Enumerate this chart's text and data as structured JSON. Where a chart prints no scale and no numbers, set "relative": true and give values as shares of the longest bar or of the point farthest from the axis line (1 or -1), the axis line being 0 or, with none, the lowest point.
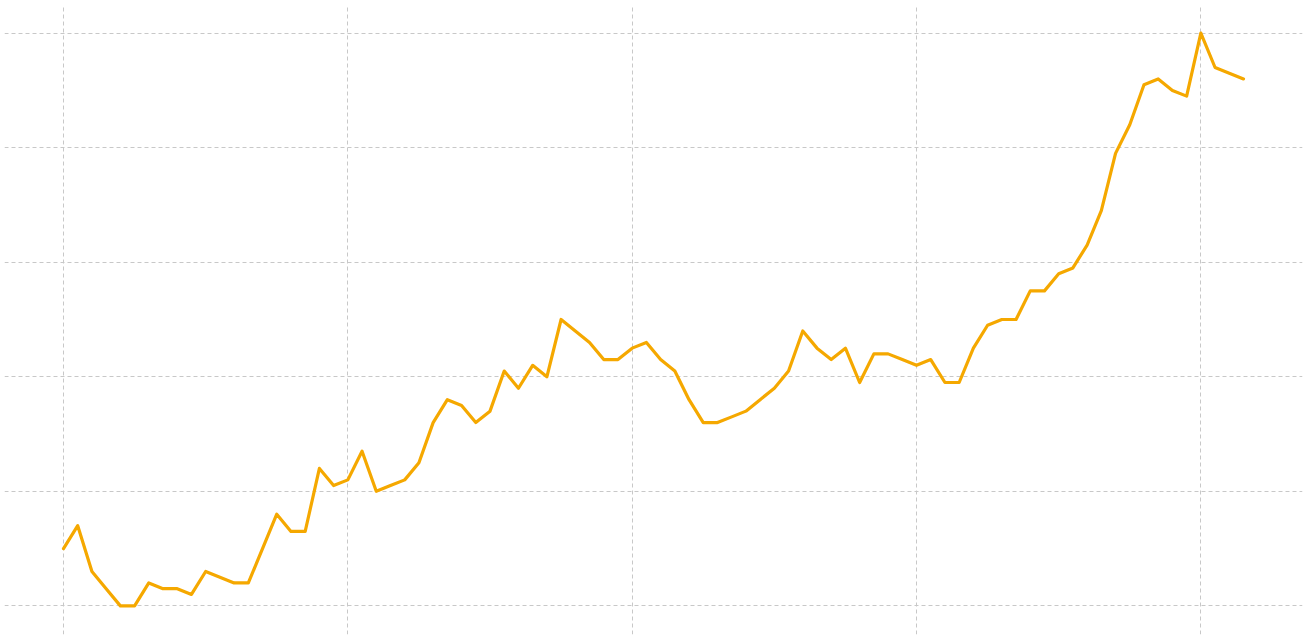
{
  "chart_data": {
    "type": "line",
    "relative": true,
    "grid": true,
    "line_style": "solid",
    "marker": "none",
    "categories": [
      null,
      null,
      null,
      null,
      null,
      null,
      null,
      null,
      null,
      null,
      null,
      null,
      null,
      null,
      null,
      null,
      null,
      null,
      null,
      null,
      null,
      null,
      null,
      null,
      null,
      null,
      null,
      null,
      null,
      null,
      null,
      null,
      null,
      null,
      null,
      null,
      null,
      null,
      null,
      null,
      null,
      null,
      null,
      null,
      null,
      null,
      null,
      null,
      null,
      null,
      null,
      null,
      null,
      null,
      null,
      null,
      null,
      null,
      null,
      null,
      null,
      null,
      null,
      null,
      null,
      null,
      null,
      null,
      null,
      null,
      null,
      null,
      null,
      null,
      null,
      null,
      null,
      null,
      null,
      null,
      null,
      null,
      null,
      null
    ],
    "series": [
      {
        "color": "#f5a800",
        "values": [
          0.1,
          0.14,
          0.06,
          0.03,
          0,
          0.0,
          0.04,
          0.03,
          0.03,
          0.02,
          0.06,
          0.05,
          0.04,
          0.04,
          0.1,
          0.16,
          0.13,
          0.13,
          0.24,
          0.21,
          0.22,
          0.27,
          0.2,
          0.21,
          0.22,
          0.25,
          0.32,
          0.36,
          0.35,
          0.32,
          0.34,
          0.41,
          0.38,
          0.42,
          0.4,
          0.5,
          0.48,
          0.46,
          0.43,
          0.43,
          0.45,
          0.46,
          0.43,
          0.41,
          0.36,
          0.32,
          0.32,
          0.33,
          0.34,
          0.36,
          0.38,
          0.41,
          0.48,
          0.45,
          0.43,
          0.45,
          0.39,
          0.44,
          0.44,
          0.43,
          0.42,
          0.43,
          0.39,
          0.39,
          0.45,
          0.49,
          0.5,
          0.5,
          0.55,
          0.55,
          0.58,
          0.59,
          0.63,
          0.69,
          0.79,
          0.84,
          0.91,
          0.92,
          0.9,
          0.89,
          1.0,
          0.94,
          0.93,
          0.92
        ]
      }
    ]
  }
}
